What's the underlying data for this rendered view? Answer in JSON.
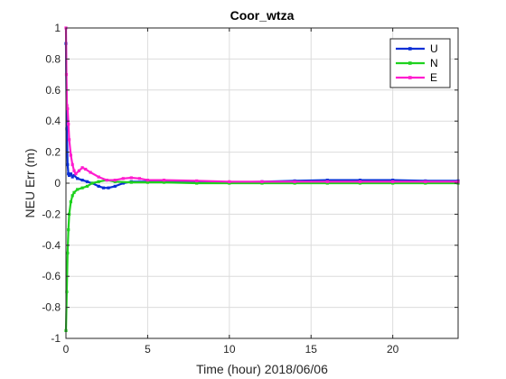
{
  "chart_data": {
    "type": "line",
    "title": "Coor_wtza",
    "xlabel": "Time (hour)  2018/06/06",
    "ylabel": "NEU Err (m)",
    "xlim": [
      0,
      24
    ],
    "ylim": [
      -1,
      1
    ],
    "xticks": [
      0,
      5,
      10,
      15,
      20
    ],
    "yticks": [
      -1,
      -0.8,
      -0.6,
      -0.4,
      -0.2,
      0,
      0.2,
      0.4,
      0.6,
      0.8,
      1
    ],
    "grid": true,
    "legend_position": "top-right",
    "series": [
      {
        "name": "U",
        "color": "#0a2fd6",
        "x": [
          0,
          0.05,
          0.1,
          0.15,
          0.2,
          0.3,
          0.4,
          0.5,
          0.7,
          1.0,
          1.3,
          1.6,
          2.0,
          2.3,
          2.6,
          3.0,
          3.5,
          4.0,
          5,
          6,
          8,
          10,
          12,
          14,
          16,
          18,
          20,
          22,
          24
        ],
        "y": [
          0.9,
          0.35,
          0.12,
          0.06,
          0.05,
          0.06,
          0.04,
          0.05,
          0.03,
          0.02,
          0.01,
          0.0,
          -0.02,
          -0.03,
          -0.03,
          -0.02,
          0.0,
          0.01,
          0.01,
          0.01,
          0.005,
          0.005,
          0.01,
          0.015,
          0.02,
          0.02,
          0.02,
          0.015,
          0.015
        ]
      },
      {
        "name": "N",
        "color": "#1ed21e",
        "x": [
          0,
          0.05,
          0.1,
          0.15,
          0.2,
          0.3,
          0.4,
          0.5,
          0.7,
          1.0,
          1.3,
          1.6,
          2.0,
          2.5,
          3.0,
          4.0,
          5,
          6,
          8,
          10,
          12,
          14,
          16,
          18,
          20,
          22,
          24
        ],
        "y": [
          -0.95,
          -0.7,
          -0.45,
          -0.3,
          -0.2,
          -0.12,
          -0.08,
          -0.06,
          -0.04,
          -0.03,
          -0.02,
          0.0,
          0.01,
          0.02,
          0.01,
          0.005,
          0.005,
          0.005,
          0.0,
          0.0,
          0.0,
          0.0,
          0.0,
          0.0,
          0.0,
          0.0,
          0.0
        ]
      },
      {
        "name": "E",
        "color": "#ff1cce",
        "x": [
          0,
          0.03,
          0.06,
          0.1,
          0.15,
          0.2,
          0.3,
          0.4,
          0.5,
          0.6,
          0.8,
          1.0,
          1.2,
          1.5,
          2.0,
          2.5,
          3.0,
          3.5,
          4.0,
          4.5,
          5,
          6,
          8,
          10,
          12,
          14,
          16,
          18,
          20,
          22,
          24
        ],
        "y": [
          1.0,
          0.7,
          0.5,
          0.48,
          0.38,
          0.28,
          0.18,
          0.12,
          0.08,
          0.06,
          0.08,
          0.1,
          0.09,
          0.07,
          0.04,
          0.02,
          0.02,
          0.03,
          0.035,
          0.03,
          0.02,
          0.02,
          0.015,
          0.01,
          0.01,
          0.01,
          0.01,
          0.01,
          0.01,
          0.01,
          0.01
        ]
      }
    ]
  }
}
